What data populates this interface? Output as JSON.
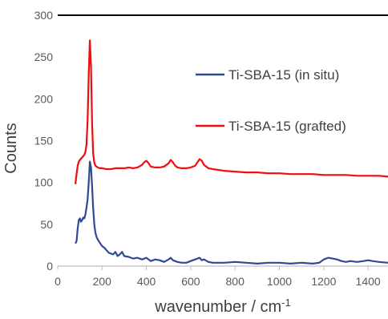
{
  "chart_data": {
    "type": "line",
    "title": "",
    "xlabel": "wavenumber / cm",
    "xlabel_superscript": "-1",
    "ylabel": "Counts",
    "xlim": [
      0,
      1490
    ],
    "ylim": [
      0,
      300
    ],
    "xticks": [
      0,
      200,
      400,
      600,
      800,
      1000,
      1200,
      1400
    ],
    "yticks": [
      0,
      50,
      100,
      150,
      200,
      250,
      300
    ],
    "grid": false,
    "legend_position": "upper-right",
    "series": [
      {
        "name": "Ti-SBA-15 (in situ)",
        "color": "#2E4A94",
        "x": [
          80,
          85,
          90,
          95,
          100,
          105,
          110,
          115,
          120,
          125,
          130,
          135,
          140,
          145,
          150,
          155,
          160,
          165,
          170,
          175,
          180,
          190,
          200,
          210,
          220,
          230,
          240,
          250,
          260,
          270,
          280,
          290,
          300,
          320,
          340,
          360,
          380,
          400,
          420,
          440,
          460,
          480,
          500,
          510,
          520,
          540,
          560,
          580,
          600,
          620,
          640,
          650,
          660,
          680,
          700,
          750,
          800,
          850,
          900,
          950,
          1000,
          1050,
          1100,
          1150,
          1180,
          1200,
          1220,
          1240,
          1260,
          1280,
          1300,
          1320,
          1350,
          1380,
          1400,
          1420,
          1450,
          1490
        ],
        "y": [
          27,
          30,
          45,
          55,
          57,
          53,
          55,
          58,
          57,
          62,
          70,
          80,
          100,
          125,
          118,
          95,
          70,
          50,
          40,
          35,
          32,
          28,
          24,
          22,
          19,
          16,
          15,
          14,
          17,
          12,
          14,
          17,
          12,
          11,
          9,
          10,
          8,
          10,
          6,
          8,
          7,
          5,
          8,
          10,
          7,
          5,
          4,
          4,
          6,
          8,
          10,
          7,
          8,
          5,
          4,
          4,
          5,
          4,
          3,
          4,
          4,
          3,
          4,
          3,
          4,
          8,
          10,
          9,
          8,
          6,
          5,
          6,
          5,
          6,
          7,
          6,
          5,
          4
        ]
      },
      {
        "name": "Ti-SBA-15 (grafted)",
        "color": "#F20D0D",
        "x": [
          80,
          85,
          90,
          95,
          100,
          110,
          120,
          125,
          130,
          135,
          140,
          145,
          150,
          155,
          160,
          165,
          170,
          180,
          190,
          200,
          220,
          240,
          260,
          280,
          300,
          320,
          340,
          360,
          380,
          390,
          400,
          410,
          420,
          440,
          460,
          480,
          500,
          510,
          520,
          530,
          540,
          560,
          580,
          600,
          620,
          630,
          640,
          650,
          660,
          680,
          700,
          750,
          800,
          850,
          900,
          950,
          1000,
          1050,
          1100,
          1150,
          1200,
          1250,
          1300,
          1350,
          1400,
          1450,
          1490
        ],
        "y": [
          98,
          110,
          120,
          125,
          127,
          130,
          133,
          137,
          145,
          175,
          230,
          270,
          240,
          170,
          135,
          124,
          120,
          118,
          117,
          117,
          116,
          116,
          117,
          117,
          117,
          118,
          117,
          118,
          121,
          124,
          126,
          123,
          119,
          118,
          118,
          119,
          123,
          127,
          124,
          120,
          118,
          117,
          117,
          118,
          120,
          124,
          128,
          126,
          121,
          117,
          116,
          114,
          113,
          112,
          112,
          111,
          111,
          110,
          110,
          110,
          109,
          109,
          109,
          108,
          108,
          108,
          107
        ]
      }
    ]
  }
}
